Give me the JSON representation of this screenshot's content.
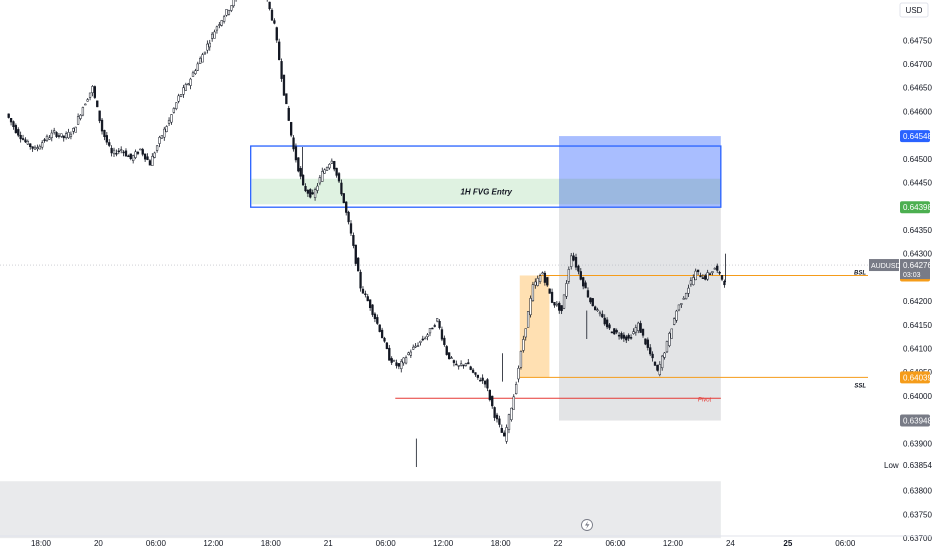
{
  "header": {
    "currency_label": "USD"
  },
  "chart_data": {
    "type": "candlestick",
    "symbol": "AUDUSD",
    "currency": "USD",
    "y_range": [
      0.63675,
      0.64835
    ],
    "price_ticks": [
      "0.64750",
      "0.64700",
      "0.64650",
      "0.64600",
      "0.64500",
      "0.64450",
      "0.64350",
      "0.64300",
      "0.64200",
      "0.64150",
      "0.64100",
      "0.64050",
      "0.64000",
      "0.63900",
      "0.63800",
      "0.63750",
      "0.63700"
    ],
    "x_ticks": [
      {
        "t": 0,
        "label": "18:00"
      },
      {
        "t": 6,
        "label": "20"
      },
      {
        "t": 12,
        "label": "06:00"
      },
      {
        "t": 18,
        "label": "12:00"
      },
      {
        "t": 24,
        "label": "18:00"
      },
      {
        "t": 30,
        "label": "21"
      },
      {
        "t": 36,
        "label": "06:00"
      },
      {
        "t": 42,
        "label": "12:00"
      },
      {
        "t": 48,
        "label": "18:00"
      },
      {
        "t": 54,
        "label": "22"
      },
      {
        "t": 60,
        "label": "06:00"
      },
      {
        "t": 66,
        "label": "12:00"
      },
      {
        "t": 72,
        "label": "24"
      },
      {
        "t": 78,
        "label": "25"
      },
      {
        "t": 84,
        "label": "06:00"
      }
    ],
    "x_bold_ticks": [
      "25"
    ],
    "price_path": [
      [
        -3.5,
        0.64595
      ],
      [
        -2.5,
        0.6456
      ],
      [
        -1.5,
        0.64535
      ],
      [
        -0.5,
        0.6452
      ],
      [
        0.5,
        0.6454
      ],
      [
        1.5,
        0.64555
      ],
      [
        2.5,
        0.64545
      ],
      [
        3.5,
        0.6456
      ],
      [
        4.5,
        0.6461
      ],
      [
        5.5,
        0.6465
      ],
      [
        6.5,
        0.6456
      ],
      [
        7.5,
        0.6451
      ],
      [
        8.5,
        0.6452
      ],
      [
        9.5,
        0.645
      ],
      [
        10.5,
        0.6452
      ],
      [
        11.5,
        0.6449
      ],
      [
        12.5,
        0.6454
      ],
      [
        13.5,
        0.6458
      ],
      [
        14.5,
        0.6463
      ],
      [
        15.5,
        0.6466
      ],
      [
        16.5,
        0.647
      ],
      [
        17.5,
        0.6474
      ],
      [
        18.5,
        0.6478
      ],
      [
        19.5,
        0.6481
      ],
      [
        20.5,
        0.6484
      ],
      [
        21.5,
        0.6486
      ],
      [
        22.5,
        0.6488
      ],
      [
        23.5,
        0.6485
      ],
      [
        24.5,
        0.6478
      ],
      [
        25.5,
        0.6464
      ],
      [
        26.5,
        0.6452
      ],
      [
        27.5,
        0.6444
      ],
      [
        28.5,
        0.6442
      ],
      [
        29.5,
        0.6447
      ],
      [
        30.5,
        0.645
      ],
      [
        31.5,
        0.6443
      ],
      [
        32.5,
        0.6434
      ],
      [
        33.5,
        0.6423
      ],
      [
        34.5,
        0.6419
      ],
      [
        35.5,
        0.6414
      ],
      [
        36.5,
        0.6408
      ],
      [
        37.5,
        0.6406
      ],
      [
        38.5,
        0.6409
      ],
      [
        39.5,
        0.6411
      ],
      [
        40.5,
        0.6413
      ],
      [
        41.5,
        0.6416
      ],
      [
        42.5,
        0.6409
      ],
      [
        43.5,
        0.6406
      ],
      [
        44.5,
        0.6407
      ],
      [
        45.5,
        0.6404
      ],
      [
        46.5,
        0.6403
      ],
      [
        47.5,
        0.6396
      ],
      [
        48.5,
        0.6391
      ],
      [
        49.5,
        0.64
      ],
      [
        50.5,
        0.6412
      ],
      [
        51.5,
        0.6423
      ],
      [
        52.5,
        0.6426
      ],
      [
        53.5,
        0.642
      ],
      [
        54.5,
        0.6418
      ],
      [
        55.5,
        0.643
      ],
      [
        56.5,
        0.6425
      ],
      [
        57.5,
        0.642
      ],
      [
        58.5,
        0.6417
      ],
      [
        59.5,
        0.6414
      ],
      [
        60.5,
        0.6413
      ],
      [
        61.5,
        0.6412
      ],
      [
        62.5,
        0.6415
      ],
      [
        63.5,
        0.641
      ],
      [
        64.5,
        0.6405
      ],
      [
        65.5,
        0.6411
      ],
      [
        66.5,
        0.6418
      ],
      [
        67.5,
        0.6422
      ],
      [
        68.5,
        0.6426
      ],
      [
        69.5,
        0.6425
      ],
      [
        70.5,
        0.6427
      ],
      [
        71.5,
        0.6424
      ]
    ],
    "current_price": 0.64276,
    "countdown": "03:03",
    "price_badges": [
      {
        "value": 0.64548,
        "label": "0.64548",
        "color": "#2962ff"
      },
      {
        "value": 0.64398,
        "label": "0.64398",
        "color": "#4caf50"
      },
      {
        "value": 0.64254,
        "label": "0.64254",
        "color": "#f59c1a"
      },
      {
        "value": 0.64039,
        "label": "0.64039",
        "color": "#f59c1a"
      },
      {
        "value": 0.63948,
        "label": "0.63948",
        "color": "#787b86"
      },
      {
        "value": 0.63854,
        "label": "0.63854",
        "color": "#ffffff"
      }
    ],
    "low_label": "Low",
    "bsl_label": "BSL",
    "ssl_label": "SSL",
    "fvg_label": "1H FVG Entry",
    "pivot_label": "Pivot",
    "bsl_level": 0.64254,
    "ssl_level": 0.64039,
    "pivot_level": 0.63995,
    "fvg_zone": [
      0.64404,
      0.64458
    ],
    "entry_box": [
      0.64398,
      0.64527
    ],
    "target_zone": [
      0.64398,
      0.64548
    ],
    "stop_zone": [
      0.63948,
      0.64398
    ],
    "order_block": [
      0.64039,
      0.64254
    ],
    "bottom_zone": [
      0.637,
      0.6382
    ],
    "colors": {
      "up": "#089981",
      "down": "#f23645",
      "candle": "#131722",
      "blue_line": "#2962ff",
      "fvg_fill": "#dff2e1",
      "target_fill": "#9ab3ff",
      "stop_fill": "#e3e4e6",
      "order_block": "#ffe0b2",
      "bsl_line": "#f59c1a",
      "pivot_line": "#e53935"
    }
  }
}
